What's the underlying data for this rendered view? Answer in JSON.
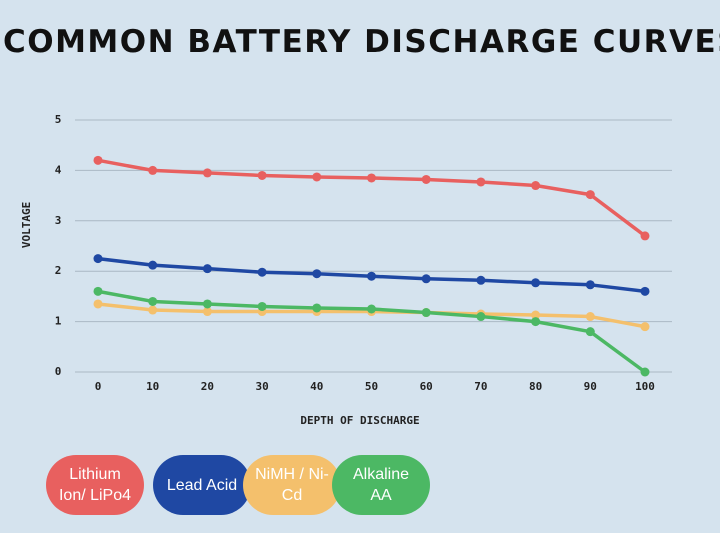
{
  "chart_data": {
    "type": "line",
    "title": "COMMON BATTERY DISCHARGE CURVES",
    "x_label": "DEPTH OF DISCHARGE",
    "y_label": "VOLTAGE",
    "x": [
      0,
      10,
      20,
      30,
      40,
      50,
      60,
      70,
      80,
      90,
      100
    ],
    "xlim": [
      0,
      100
    ],
    "xticks": [
      0,
      10,
      20,
      30,
      40,
      50,
      60,
      70,
      80,
      90,
      100
    ],
    "ylim": [
      0,
      5
    ],
    "yticks": [
      0,
      1,
      2,
      3,
      4,
      5
    ],
    "grid": true,
    "series": [
      {
        "name": "Lithium Ion/ LiPo4",
        "color": "#e8605f",
        "values": [
          4.2,
          4.0,
          3.95,
          3.9,
          3.87,
          3.85,
          3.82,
          3.77,
          3.7,
          3.52,
          2.7
        ]
      },
      {
        "name": "Lead Acid",
        "color": "#1f48a3",
        "values": [
          2.25,
          2.12,
          2.05,
          1.98,
          1.95,
          1.9,
          1.85,
          1.82,
          1.77,
          1.73,
          1.6
        ]
      },
      {
        "name": "NiMH / Ni-Cd",
        "color": "#f4c06c",
        "values": [
          1.35,
          1.23,
          1.2,
          1.2,
          1.2,
          1.2,
          1.18,
          1.15,
          1.13,
          1.1,
          0.9
        ]
      },
      {
        "name": "Alkaline AA",
        "color": "#4cb864",
        "values": [
          1.6,
          1.4,
          1.35,
          1.3,
          1.27,
          1.25,
          1.18,
          1.1,
          1.0,
          0.8,
          0.0
        ]
      }
    ]
  }
}
